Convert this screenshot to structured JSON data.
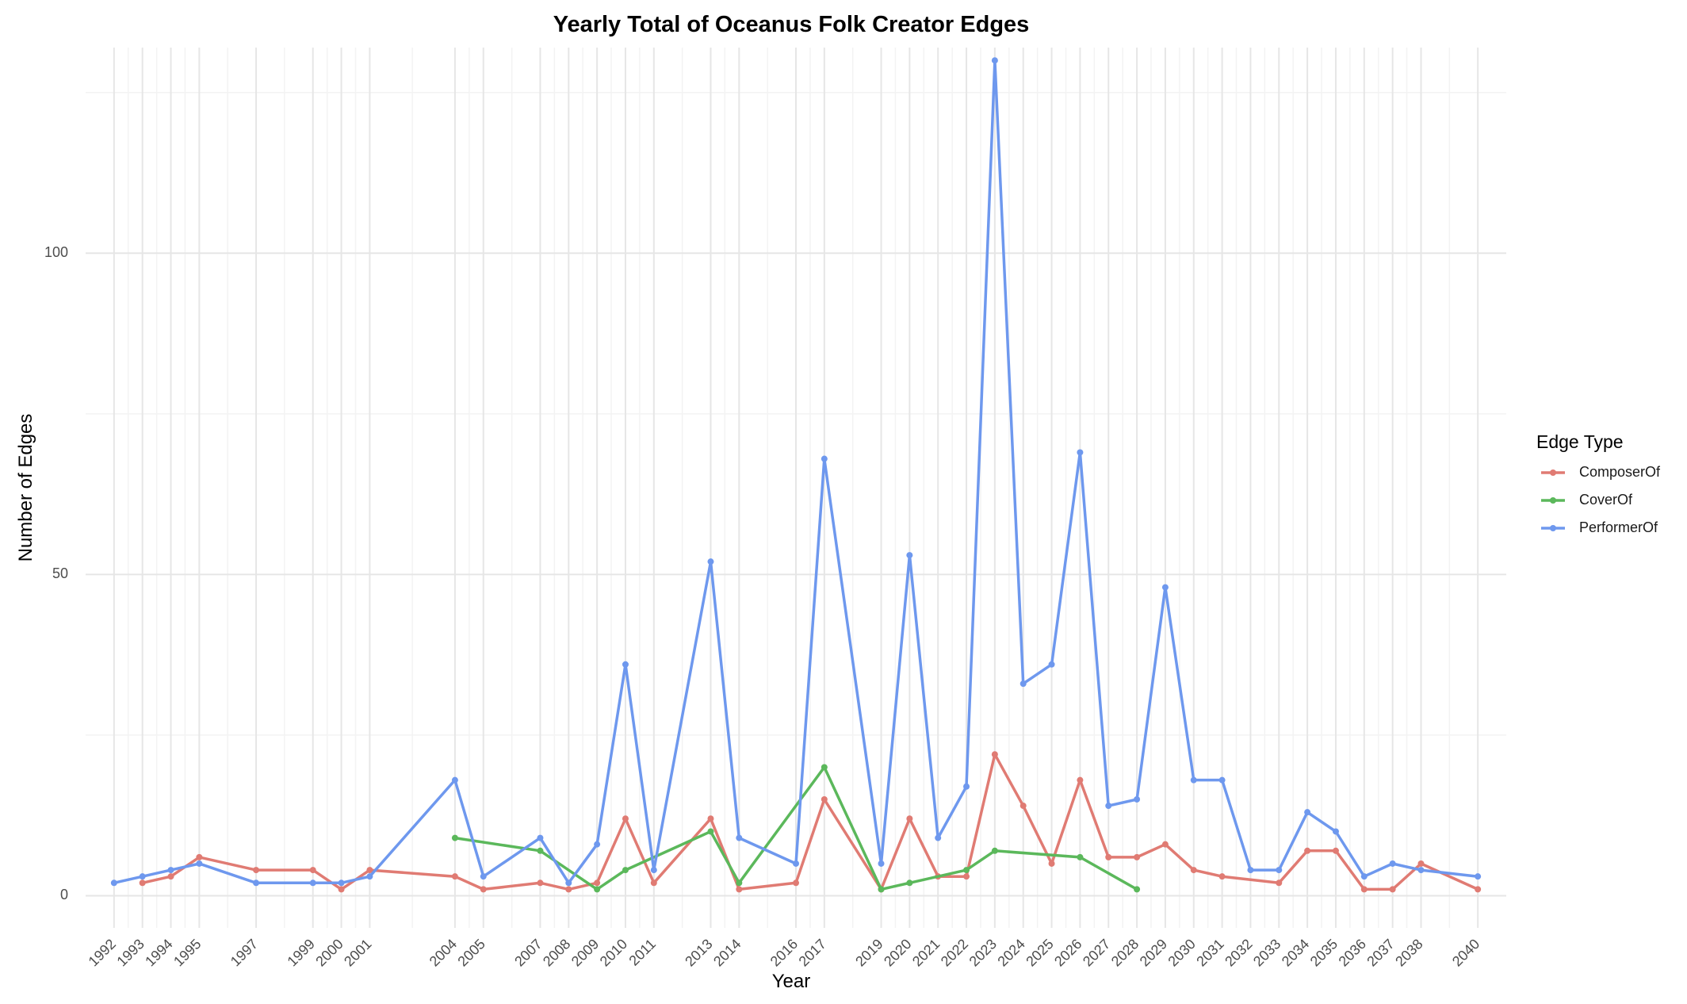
{
  "chart_data": {
    "type": "line",
    "title": "Yearly Total of Oceanus Folk Creator Edges",
    "xlabel": "Year",
    "ylabel": "Number of Edges",
    "xlim": [
      1991,
      2041
    ],
    "ylim": [
      -5,
      132
    ],
    "x_ticks": [
      1992,
      1993,
      1994,
      1995,
      1997,
      1999,
      2000,
      2001,
      2004,
      2005,
      2007,
      2008,
      2009,
      2010,
      2011,
      2013,
      2014,
      2016,
      2017,
      2019,
      2020,
      2021,
      2022,
      2023,
      2024,
      2025,
      2026,
      2027,
      2028,
      2029,
      2030,
      2031,
      2032,
      2033,
      2034,
      2035,
      2036,
      2037,
      2038,
      2040
    ],
    "y_ticks": [
      0,
      50,
      100
    ],
    "grid": true,
    "legend": {
      "title": "Edge Type",
      "position": "right"
    },
    "series": [
      {
        "name": "ComposerOf",
        "color": "#E07B73",
        "points": [
          [
            1993,
            2
          ],
          [
            1994,
            3
          ],
          [
            1995,
            6
          ],
          [
            1997,
            4
          ],
          [
            1999,
            4
          ],
          [
            2000,
            1
          ],
          [
            2001,
            4
          ],
          [
            2004,
            3
          ],
          [
            2005,
            1
          ],
          [
            2007,
            2
          ],
          [
            2008,
            1
          ],
          [
            2009,
            2
          ],
          [
            2010,
            12
          ],
          [
            2011,
            2
          ],
          [
            2013,
            12
          ],
          [
            2014,
            1
          ],
          [
            2016,
            2
          ],
          [
            2017,
            15
          ],
          [
            2019,
            1
          ],
          [
            2020,
            12
          ],
          [
            2021,
            3
          ],
          [
            2022,
            3
          ],
          [
            2023,
            22
          ],
          [
            2024,
            14
          ],
          [
            2025,
            5
          ],
          [
            2026,
            18
          ],
          [
            2027,
            6
          ],
          [
            2028,
            6
          ],
          [
            2029,
            8
          ],
          [
            2030,
            4
          ],
          [
            2031,
            3
          ],
          [
            2033,
            2
          ],
          [
            2034,
            7
          ],
          [
            2035,
            7
          ],
          [
            2036,
            1
          ],
          [
            2037,
            1
          ],
          [
            2038,
            5
          ],
          [
            2040,
            1
          ]
        ]
      },
      {
        "name": "CoverOf",
        "color": "#5BB85B",
        "points": [
          [
            2004,
            9
          ],
          [
            2007,
            7
          ],
          [
            2009,
            1
          ],
          [
            2010,
            4
          ],
          [
            2013,
            10
          ],
          [
            2014,
            2
          ],
          [
            2017,
            20
          ],
          [
            2019,
            1
          ],
          [
            2020,
            2
          ],
          [
            2022,
            4
          ],
          [
            2023,
            7
          ],
          [
            2026,
            6
          ],
          [
            2028,
            1
          ]
        ]
      },
      {
        "name": "PerformerOf",
        "color": "#6E98EE",
        "points": [
          [
            1992,
            2
          ],
          [
            1993,
            3
          ],
          [
            1994,
            4
          ],
          [
            1995,
            5
          ],
          [
            1997,
            2
          ],
          [
            1999,
            2
          ],
          [
            2000,
            2
          ],
          [
            2001,
            3
          ],
          [
            2004,
            18
          ],
          [
            2005,
            3
          ],
          [
            2007,
            9
          ],
          [
            2008,
            2
          ],
          [
            2009,
            8
          ],
          [
            2010,
            36
          ],
          [
            2011,
            4
          ],
          [
            2013,
            52
          ],
          [
            2014,
            9
          ],
          [
            2016,
            5
          ],
          [
            2017,
            68
          ],
          [
            2019,
            5
          ],
          [
            2020,
            53
          ],
          [
            2021,
            9
          ],
          [
            2022,
            17
          ],
          [
            2023,
            130
          ],
          [
            2024,
            33
          ],
          [
            2025,
            36
          ],
          [
            2026,
            69
          ],
          [
            2027,
            14
          ],
          [
            2028,
            15
          ],
          [
            2029,
            48
          ],
          [
            2030,
            18
          ],
          [
            2031,
            18
          ],
          [
            2032,
            4
          ],
          [
            2033,
            4
          ],
          [
            2034,
            13
          ],
          [
            2035,
            10
          ],
          [
            2036,
            3
          ],
          [
            2037,
            5
          ],
          [
            2038,
            4
          ],
          [
            2040,
            3
          ]
        ]
      }
    ]
  }
}
